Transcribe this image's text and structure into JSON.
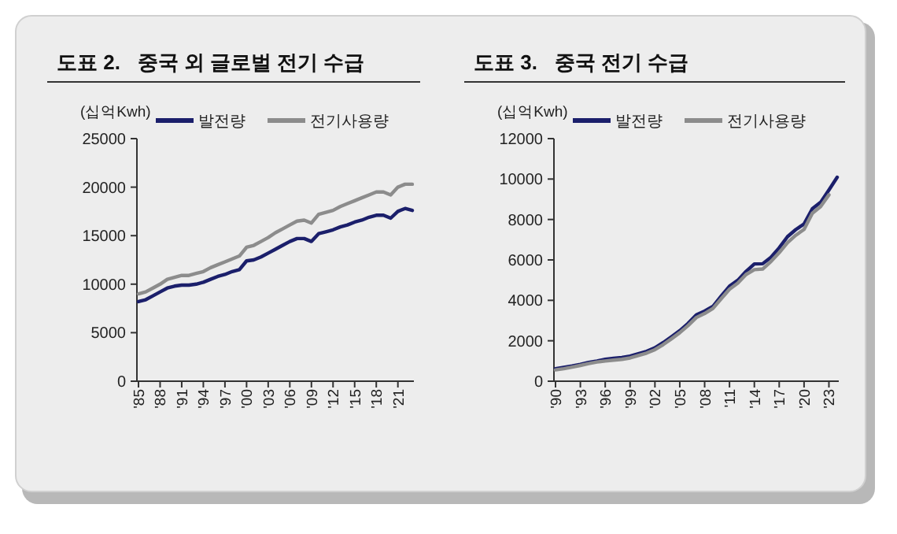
{
  "chart_data": [
    {
      "type": "line",
      "title": "도표 2.   중국 외 글로벌 전기 수급",
      "ylabel": "(십억Kwh)",
      "legend": "top",
      "categories": [
        "'85",
        null,
        null,
        "'88",
        null,
        null,
        "'91",
        null,
        null,
        "'94",
        null,
        null,
        "'97",
        null,
        null,
        "'00",
        null,
        null,
        "'03",
        null,
        null,
        "'06",
        null,
        null,
        "'09",
        null,
        null,
        "'12",
        null,
        null,
        "'15",
        null,
        null,
        "'18",
        null,
        null,
        "'21",
        null,
        null
      ],
      "ylim": [
        0,
        25000
      ],
      "yticks": [
        0,
        5000,
        10000,
        15000,
        20000,
        25000
      ],
      "series": [
        {
          "name": "발전량",
          "color": "#1b1f6b",
          "values": [
            8200,
            8400,
            8800,
            9200,
            9600,
            9800,
            9900,
            9900,
            10000,
            10200,
            10500,
            10800,
            11000,
            11300,
            11500,
            12400,
            12500,
            12800,
            13200,
            13600,
            14000,
            14400,
            14700,
            14700,
            14400,
            15200,
            15400,
            15600,
            15900,
            16100,
            16400,
            16600,
            16900,
            17100,
            17100,
            16800,
            17500,
            17800,
            17600
          ]
        },
        {
          "name": "전기사용량",
          "color": "#8c8c8c",
          "values": [
            9000,
            9200,
            9600,
            10000,
            10500,
            10700,
            10900,
            10900,
            11100,
            11300,
            11700,
            12000,
            12300,
            12600,
            12900,
            13800,
            14000,
            14400,
            14800,
            15300,
            15700,
            16100,
            16500,
            16600,
            16300,
            17200,
            17400,
            17600,
            18000,
            18300,
            18600,
            18900,
            19200,
            19500,
            19500,
            19200,
            20000,
            20300,
            20300
          ]
        }
      ]
    },
    {
      "type": "line",
      "title": "도표 3.   중국 전기 수급",
      "ylabel": "(십억Kwh)",
      "legend": "top",
      "categories": [
        "'90",
        null,
        null,
        "'93",
        null,
        null,
        "'96",
        null,
        null,
        "'99",
        null,
        null,
        "'02",
        null,
        null,
        "'05",
        null,
        null,
        "'08",
        null,
        null,
        "'11",
        null,
        null,
        "'14",
        null,
        null,
        "'17",
        null,
        null,
        "'20",
        null,
        null,
        "'23",
        null
      ],
      "ylim": [
        0,
        12000
      ],
      "yticks": [
        0,
        2000,
        4000,
        6000,
        8000,
        10000,
        12000
      ],
      "series": [
        {
          "name": "발전량",
          "color": "#1b1f6b",
          "values": [
            620,
            680,
            750,
            830,
            930,
            1000,
            1080,
            1130,
            1170,
            1240,
            1360,
            1480,
            1650,
            1910,
            2200,
            2500,
            2860,
            3280,
            3470,
            3700,
            4210,
            4700,
            4990,
            5430,
            5800,
            5810,
            6130,
            6600,
            7150,
            7500,
            7780,
            8530,
            8850,
            9460,
            10090
          ]
        },
        {
          "name": "전기사용량",
          "color": "#8c8c8c",
          "values": [
            560,
            620,
            700,
            780,
            870,
            950,
            1000,
            1040,
            1080,
            1150,
            1270,
            1390,
            1560,
            1810,
            2100,
            2400,
            2750,
            3150,
            3350,
            3600,
            4080,
            4550,
            4850,
            5280,
            5520,
            5550,
            5920,
            6360,
            6850,
            7220,
            7510,
            8310,
            8640,
            9220,
            null
          ]
        }
      ]
    }
  ]
}
